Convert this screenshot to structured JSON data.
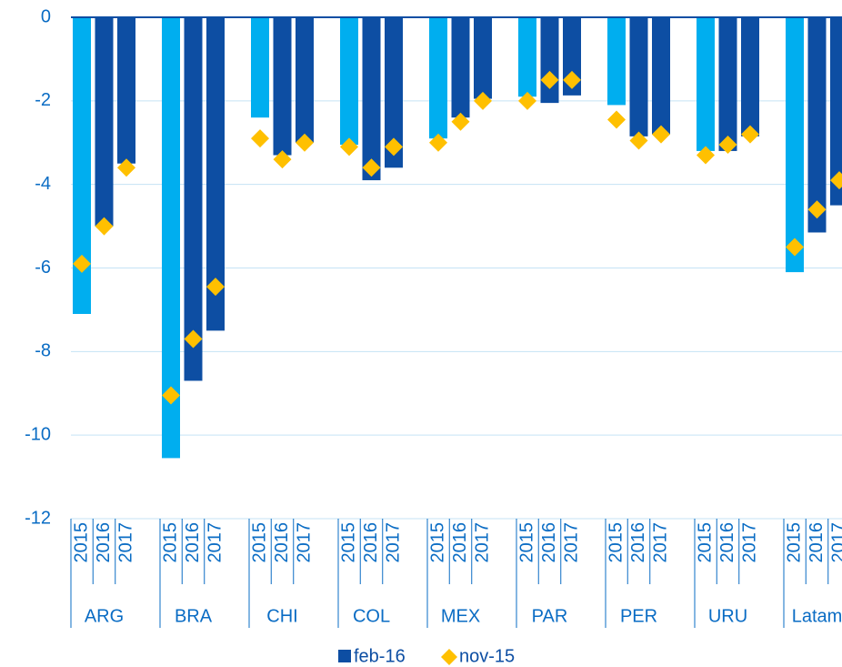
{
  "chart_data": {
    "type": "bar",
    "groups": [
      "ARG",
      "BRA",
      "CHI",
      "COL",
      "MEX",
      "PAR",
      "PER",
      "URU",
      "Latam"
    ],
    "categories": [
      "2015",
      "2016",
      "2017",
      "2015",
      "2016",
      "2017",
      "2015",
      "2016",
      "2017",
      "2015",
      "2016",
      "2017",
      "2015",
      "2016",
      "2017",
      "2015",
      "2016",
      "2017",
      "2015",
      "2016",
      "2017",
      "2015",
      "2016",
      "2017",
      "2015",
      "2016",
      "2017"
    ],
    "series": [
      {
        "name": "feb-16",
        "type": "bar",
        "color": "#0d4ea3",
        "colors": [
          "#00aeef",
          "#0d4ea3",
          "#0d4ea3",
          "#00aeef",
          "#0d4ea3",
          "#0d4ea3",
          "#00aeef",
          "#0d4ea3",
          "#0d4ea3",
          "#00aeef",
          "#0d4ea3",
          "#0d4ea3",
          "#00aeef",
          "#0d4ea3",
          "#0d4ea3",
          "#00aeef",
          "#0d4ea3",
          "#0d4ea3",
          "#00aeef",
          "#0d4ea3",
          "#0d4ea3",
          "#00aeef",
          "#0d4ea3",
          "#0d4ea3",
          "#00aeef",
          "#0d4ea3",
          "#0d4ea3"
        ],
        "values": [
          -7.1,
          -5.0,
          -3.5,
          -10.55,
          -8.7,
          -7.5,
          -2.4,
          -3.3,
          -3.0,
          -3.05,
          -3.9,
          -3.6,
          -2.9,
          -2.4,
          -1.95,
          -1.9,
          -2.05,
          -1.87,
          -2.1,
          -2.85,
          -2.8,
          -3.2,
          -3.2,
          -2.85,
          -6.1,
          -5.15,
          -4.5
        ]
      },
      {
        "name": "nov-15",
        "type": "diamond",
        "color": "#ffc000",
        "values": [
          -5.9,
          -5.0,
          -3.6,
          -9.05,
          -7.7,
          -6.45,
          -2.9,
          -3.4,
          -3.0,
          -3.1,
          -3.6,
          -3.1,
          -3.0,
          -2.5,
          -2.0,
          -2.0,
          -1.5,
          -1.5,
          -2.45,
          -2.95,
          -2.8,
          -3.3,
          -3.05,
          -2.8,
          -5.5,
          -4.6,
          -3.9
        ]
      }
    ],
    "ylim": [
      -12,
      0
    ],
    "yticks": [
      0,
      -2,
      -4,
      -6,
      -8,
      -10,
      -12
    ],
    "grid": true,
    "legend": "bottom"
  }
}
